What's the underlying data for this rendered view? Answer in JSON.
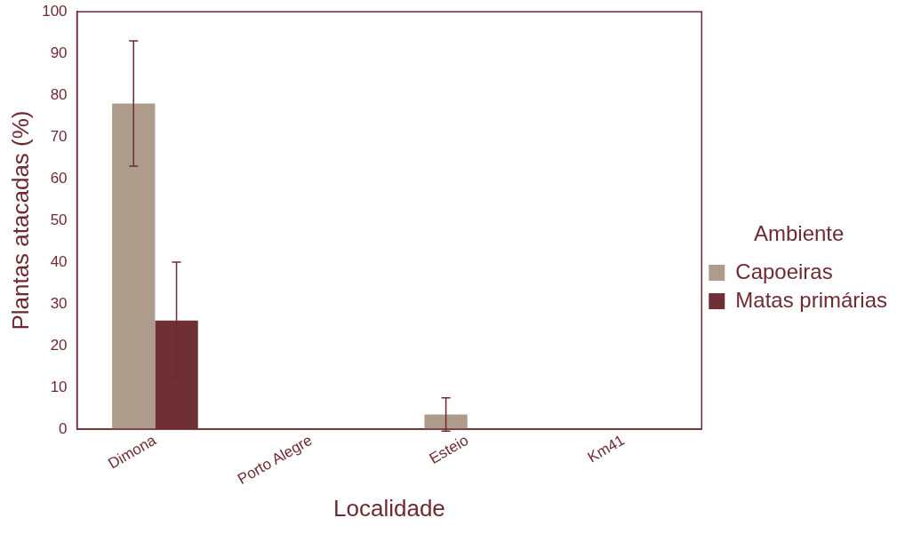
{
  "chart_data": {
    "type": "bar",
    "xlabel": "Localidade",
    "ylabel": "Plantas atacadas (%)",
    "legend_title": "Ambiente",
    "categories": [
      "Dimona",
      "Porto Alegre",
      "Esteio",
      "Km41"
    ],
    "series": [
      {
        "name": "Capoeiras",
        "color": "#ad9c8c",
        "values": [
          78,
          0,
          3.5,
          0
        ],
        "errors": [
          15,
          null,
          4,
          null
        ]
      },
      {
        "name": "Matas primárias",
        "color": "#6e3035",
        "values": [
          26,
          null,
          0,
          null
        ],
        "errors": [
          14,
          null,
          null,
          null
        ]
      }
    ],
    "ylim": [
      0,
      100
    ],
    "yticks": [
      0,
      10,
      20,
      30,
      40,
      50,
      60,
      70,
      80,
      90,
      100
    ],
    "grid": false,
    "legend": "right"
  }
}
